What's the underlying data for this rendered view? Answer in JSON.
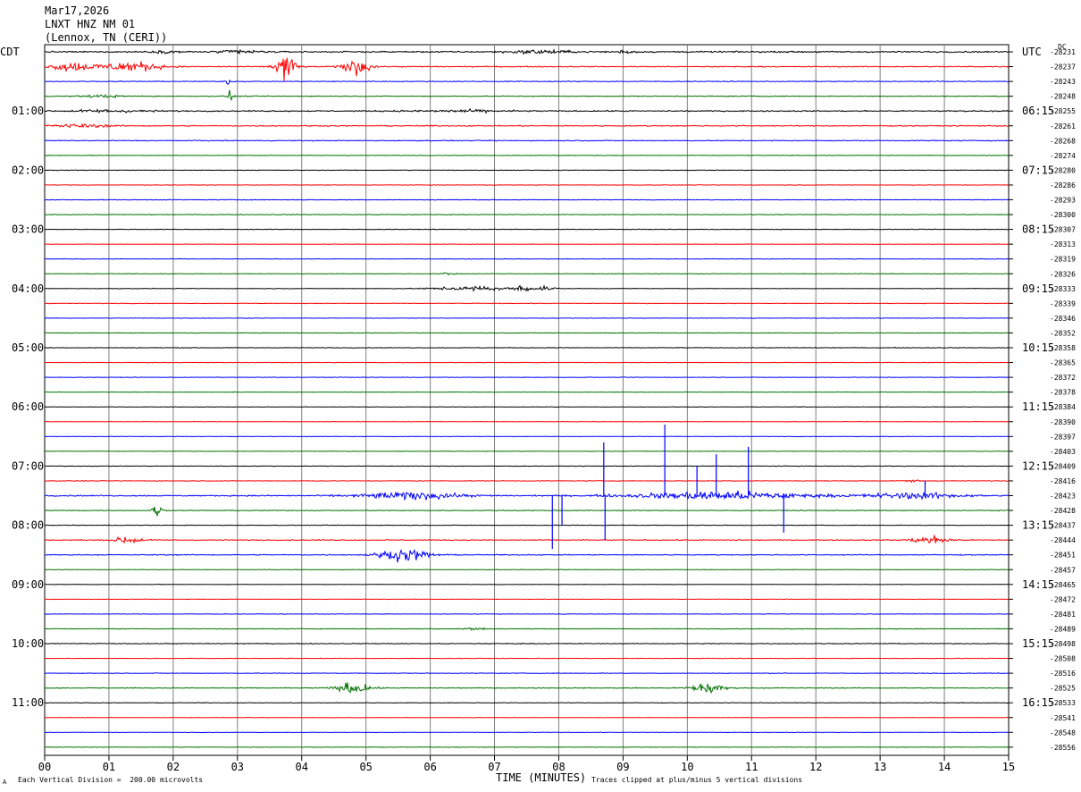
{
  "header": {
    "date": "Mar17,2026",
    "station": "LNXT HNZ NM 01",
    "location": "(Lennox, TN (CERI))"
  },
  "left_axis_label": "CDT",
  "right_axis_label": "UTC",
  "dc_label": "DC",
  "footer": {
    "xlabel": "TIME (MINUTES)",
    "scale_note": "Each Vertical Division =  200.00 microvolts",
    "clip_note": "Traces clipped at plus/minus 5 vertical divisions",
    "corner_mark": "A"
  },
  "colors": {
    "trace_cycle": [
      "#000000",
      "#ff0000",
      "#0000ff",
      "#007000"
    ],
    "grid": "#808080"
  },
  "chart_data": {
    "type": "line",
    "title": "Mar17,2026 LNXT HNZ NM 01 (Lennox, TN (CERI))",
    "xlabel": "TIME (MINUTES)",
    "xlim": [
      0,
      15
    ],
    "x_ticks": [
      "00",
      "01",
      "02",
      "03",
      "04",
      "05",
      "06",
      "07",
      "08",
      "09",
      "10",
      "11",
      "12",
      "13",
      "14",
      "15"
    ],
    "line_minutes": 15,
    "num_lines": 48,
    "left_time_labels": [
      {
        "line": 0,
        "text": "CDT"
      },
      {
        "line": 4,
        "text": "01:00"
      },
      {
        "line": 8,
        "text": "02:00"
      },
      {
        "line": 12,
        "text": "03:00"
      },
      {
        "line": 16,
        "text": "04:00"
      },
      {
        "line": 20,
        "text": "05:00"
      },
      {
        "line": 24,
        "text": "06:00"
      },
      {
        "line": 28,
        "text": "07:00"
      },
      {
        "line": 32,
        "text": "08:00"
      },
      {
        "line": 36,
        "text": "09:00"
      },
      {
        "line": 40,
        "text": "10:00"
      },
      {
        "line": 44,
        "text": "11:00"
      }
    ],
    "right_time_labels": [
      {
        "line": 0,
        "text": "UTC"
      },
      {
        "line": 4,
        "text": "06:15"
      },
      {
        "line": 8,
        "text": "07:15"
      },
      {
        "line": 12,
        "text": "08:15"
      },
      {
        "line": 16,
        "text": "09:15"
      },
      {
        "line": 20,
        "text": "10:15"
      },
      {
        "line": 24,
        "text": "11:15"
      },
      {
        "line": 28,
        "text": "12:15"
      },
      {
        "line": 32,
        "text": "13:15"
      },
      {
        "line": 36,
        "text": "14:15"
      },
      {
        "line": 40,
        "text": "15:15"
      },
      {
        "line": 44,
        "text": "16:15"
      }
    ],
    "dc_offsets": [
      "-28231",
      "-28237",
      "-28243",
      "-28248",
      "-28255",
      "-28261",
      "-28268",
      "-28274",
      "-28280",
      "-28286",
      "-28293",
      "-28300",
      "-28307",
      "-28313",
      "-28319",
      "-28326",
      "-28333",
      "-28339",
      "-28346",
      "-28352",
      "-28358",
      "-28365",
      "-28372",
      "-28378",
      "-28384",
      "-28390",
      "-28397",
      "-28403",
      "-28409",
      "-28416",
      "-28423",
      "-28428",
      "-28437",
      "-28444",
      "-28451",
      "-28457",
      "-28465",
      "-28472",
      "-28481",
      "-28489",
      "-28498",
      "-28508",
      "-28516",
      "-28525",
      "-28533",
      "-28541",
      "-28548",
      "-28556"
    ],
    "line_activity": [
      {
        "line": 0,
        "noise": 0.35,
        "events": [
          [
            3.05,
            0.6,
            0.22
          ],
          [
            7.7,
            0.9,
            0.2
          ],
          [
            1.9,
            0.5,
            0.1
          ],
          [
            9.05,
            0.3,
            0.2
          ]
        ]
      },
      {
        "line": 1,
        "noise": 0.25,
        "events": [
          [
            0.4,
            0.6,
            0.5
          ],
          [
            1.4,
            0.8,
            0.5
          ],
          [
            3.75,
            0.3,
            1.8
          ],
          [
            4.85,
            0.4,
            1.0
          ],
          [
            1.0,
            1.2,
            0.2
          ]
        ]
      },
      {
        "line": 2,
        "noise": 0.2,
        "events": [
          [
            2.85,
            0.1,
            0.4
          ]
        ]
      },
      {
        "line": 3,
        "noise": 0.22,
        "events": [
          [
            2.9,
            0.08,
            1.2
          ],
          [
            0.9,
            0.6,
            0.15
          ]
        ]
      },
      {
        "line": 4,
        "noise": 0.3,
        "events": [
          [
            1.0,
            1.2,
            0.15
          ],
          [
            6.5,
            1.5,
            0.12
          ]
        ]
      },
      {
        "line": 5,
        "noise": 0.25,
        "events": [
          [
            0.5,
            1.0,
            0.2
          ]
        ]
      },
      {
        "line": 6,
        "noise": 0.22,
        "events": []
      },
      {
        "line": 7,
        "noise": 0.15,
        "events": []
      },
      {
        "line": 8,
        "noise": 0.15,
        "events": []
      },
      {
        "line": 9,
        "noise": 0.12,
        "events": []
      },
      {
        "line": 10,
        "noise": 0.15,
        "events": []
      },
      {
        "line": 11,
        "noise": 0.15,
        "events": []
      },
      {
        "line": 12,
        "noise": 0.15,
        "events": []
      },
      {
        "line": 13,
        "noise": 0.12,
        "events": []
      },
      {
        "line": 14,
        "noise": 0.15,
        "events": []
      },
      {
        "line": 15,
        "noise": 0.15,
        "events": [
          [
            6.3,
            0.2,
            0.2
          ]
        ]
      },
      {
        "line": 16,
        "noise": 0.15,
        "events": [
          [
            6.7,
            1.2,
            0.25
          ],
          [
            7.45,
            0.12,
            0.9
          ],
          [
            7.8,
            0.3,
            0.3
          ]
        ]
      },
      {
        "line": 17,
        "noise": 0.15,
        "events": []
      },
      {
        "line": 18,
        "noise": 0.12,
        "events": []
      },
      {
        "line": 19,
        "noise": 0.12,
        "events": []
      },
      {
        "line": 20,
        "noise": 0.15,
        "events": []
      },
      {
        "line": 21,
        "noise": 0.12,
        "events": []
      },
      {
        "line": 22,
        "noise": 0.12,
        "events": []
      },
      {
        "line": 23,
        "noise": 0.12,
        "events": []
      },
      {
        "line": 24,
        "noise": 0.12,
        "events": []
      },
      {
        "line": 25,
        "noise": 0.12,
        "events": []
      },
      {
        "line": 26,
        "noise": 0.12,
        "events": []
      },
      {
        "line": 27,
        "noise": 0.12,
        "events": []
      },
      {
        "line": 28,
        "noise": 0.15,
        "events": []
      },
      {
        "line": 29,
        "noise": 0.15,
        "events": [
          [
            13.5,
            0.2,
            0.2
          ]
        ]
      },
      {
        "line": 30,
        "noise": 0.3,
        "events": [
          [
            5.7,
            1.5,
            0.45
          ],
          [
            10.5,
            2.6,
            0.5
          ],
          [
            13.5,
            1.5,
            0.35
          ]
        ]
      },
      {
        "line": 31,
        "noise": 0.18,
        "events": [
          [
            1.75,
            0.15,
            0.8
          ]
        ]
      },
      {
        "line": 32,
        "noise": 0.15,
        "events": []
      },
      {
        "line": 33,
        "noise": 0.22,
        "events": [
          [
            1.3,
            0.4,
            0.5
          ],
          [
            13.8,
            0.6,
            0.45
          ]
        ]
      },
      {
        "line": 34,
        "noise": 0.22,
        "events": [
          [
            5.6,
            0.8,
            0.7
          ]
        ]
      },
      {
        "line": 35,
        "noise": 0.12,
        "events": []
      },
      {
        "line": 36,
        "noise": 0.12,
        "events": []
      },
      {
        "line": 37,
        "noise": 0.12,
        "events": []
      },
      {
        "line": 38,
        "noise": 0.12,
        "events": []
      },
      {
        "line": 39,
        "noise": 0.15,
        "events": [
          [
            6.7,
            0.3,
            0.2
          ]
        ]
      },
      {
        "line": 40,
        "noise": 0.2,
        "events": []
      },
      {
        "line": 41,
        "noise": 0.12,
        "events": []
      },
      {
        "line": 42,
        "noise": 0.15,
        "events": []
      },
      {
        "line": 43,
        "noise": 0.2,
        "events": [
          [
            4.8,
            0.5,
            0.7
          ],
          [
            10.3,
            0.5,
            0.7
          ]
        ]
      },
      {
        "line": 44,
        "noise": 0.15,
        "events": []
      },
      {
        "line": 45,
        "noise": 0.12,
        "events": []
      },
      {
        "line": 46,
        "noise": 0.12,
        "events": []
      },
      {
        "line": 47,
        "noise": 0.12,
        "events": []
      }
    ],
    "spikes": [
      {
        "line": 30,
        "minute": 7.9,
        "amp": -3.6
      },
      {
        "line": 30,
        "minute": 8.05,
        "amp": -2.0
      },
      {
        "line": 30,
        "minute": 8.7,
        "amp": 3.6
      },
      {
        "line": 30,
        "minute": 8.72,
        "amp": -3.0
      },
      {
        "line": 30,
        "minute": 9.65,
        "amp": 4.8
      },
      {
        "line": 30,
        "minute": 10.15,
        "amp": 2.0
      },
      {
        "line": 30,
        "minute": 10.45,
        "amp": 2.8
      },
      {
        "line": 30,
        "minute": 10.95,
        "amp": 3.3
      },
      {
        "line": 30,
        "minute": 11.5,
        "amp": -2.5
      },
      {
        "line": 30,
        "minute": 13.7,
        "amp": 1.0
      }
    ]
  }
}
